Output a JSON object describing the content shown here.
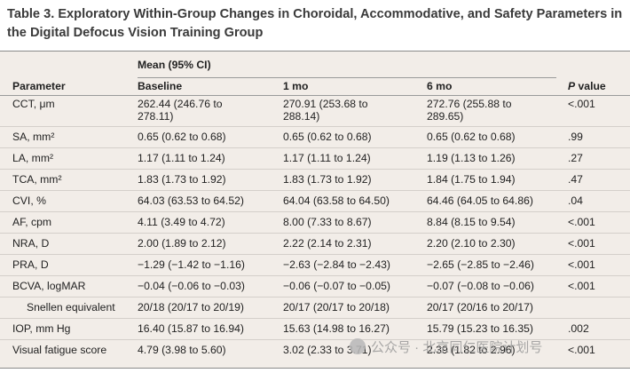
{
  "title": "Table 3. Exploratory Within-Group Changes in Choroidal, Accommodative, and Safety Parameters in the Digital Defocus Vision Training Group",
  "header": {
    "group": "Mean (95% CI)",
    "parameter": "Parameter",
    "baseline": "Baseline",
    "m1": "1 mo",
    "m6": "6 mo",
    "p_italic": "P",
    "p_rest": " value"
  },
  "rows": [
    {
      "label": "CCT, μm",
      "b": "262.44 (246.76 to",
      "b2": "278.11)",
      "m1": "270.91 (253.68 to",
      "m1b": "288.14)",
      "m6": "272.76 (255.88 to",
      "m6b": "289.65)",
      "p": "<.001"
    },
    {
      "label": "SA, mm²",
      "b": "0.65 (0.62 to 0.68)",
      "m1": "0.65 (0.62 to 0.68)",
      "m6": "0.65 (0.62 to 0.68)",
      "p": ".99"
    },
    {
      "label": "LA, mm²",
      "b": "1.17 (1.11 to 1.24)",
      "m1": "1.17 (1.11 to 1.24)",
      "m6": "1.19 (1.13 to 1.26)",
      "p": ".27"
    },
    {
      "label": "TCA, mm²",
      "b": "1.83 (1.73 to 1.92)",
      "m1": "1.83 (1.73 to 1.92)",
      "m6": "1.84 (1.75 to 1.94)",
      "p": ".47"
    },
    {
      "label": "CVI, %",
      "b": "64.03 (63.53 to 64.52)",
      "m1": "64.04 (63.58 to 64.50)",
      "m6": "64.46 (64.05 to 64.86)",
      "p": ".04"
    },
    {
      "label": "AF, cpm",
      "b": "4.11 (3.49 to 4.72)",
      "m1": "8.00 (7.33 to 8.67)",
      "m6": "8.84 (8.15 to 9.54)",
      "p": "<.001"
    },
    {
      "label": "NRA, D",
      "b": "2.00 (1.89 to 2.12)",
      "m1": "2.22 (2.14 to 2.31)",
      "m6": "2.20 (2.10 to 2.30)",
      "p": "<.001"
    },
    {
      "label": "PRA, D",
      "b": "−1.29 (−1.42 to −1.16)",
      "m1": "−2.63 (−2.84 to −2.43)",
      "m6": "−2.65 (−2.85 to −2.46)",
      "p": "<.001"
    },
    {
      "label": "BCVA, logMAR",
      "b": "−0.04 (−0.06 to −0.03)",
      "m1": "−0.06 (−0.07 to −0.05)",
      "m6": "−0.07 (−0.08 to −0.06)",
      "p": "<.001"
    },
    {
      "label": "Snellen equivalent",
      "b": "20/18 (20/17 to 20/19)",
      "m1": "20/17 (20/17 to 20/18)",
      "m6": "20/17 (20/16 to 20/17)",
      "p": ""
    },
    {
      "label": "IOP, mm Hg",
      "b": "16.40 (15.87 to 16.94)",
      "m1": "15.63 (14.98 to 16.27)",
      "m6": "15.79 (15.23 to 16.35)",
      "p": ".002"
    },
    {
      "label": "Visual fatigue score",
      "b": "4.79 (3.98 to 5.60)",
      "m1": "3.02 (2.33 to 3.71)",
      "m6": "2.39 (1.82 to 2.96)",
      "p": "<.001"
    }
  ],
  "watermark": "公众号 · 北京同仁医院计划号"
}
